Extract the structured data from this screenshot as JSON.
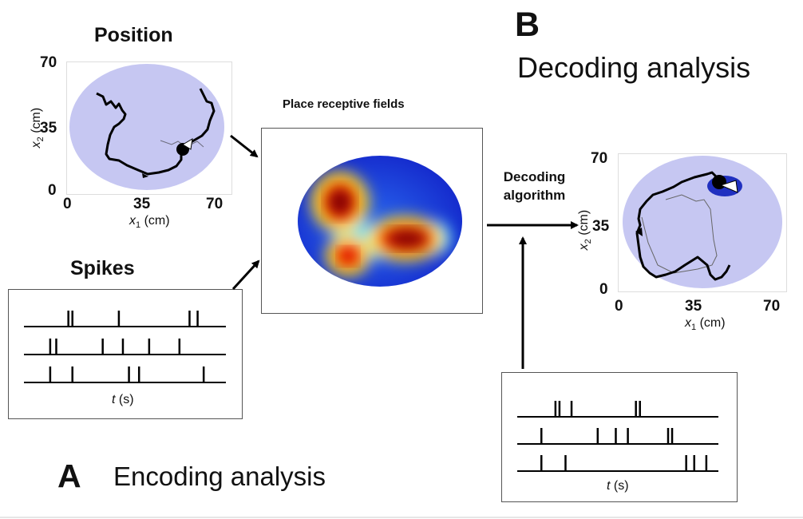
{
  "panel_a": {
    "letter": "A",
    "caption": "Encoding analysis",
    "position_title": "Position",
    "spikes_title": "Spikes",
    "rf_title": "Place receptive fields",
    "position_plot": {
      "x_ticks": [
        "0",
        "35",
        "70"
      ],
      "y_ticks": [
        "0",
        "35",
        "70"
      ],
      "xlabel_var": "x",
      "xlabel_sub": "1",
      "xlabel_unit": " (cm)",
      "ylabel_var": "x",
      "ylabel_sub": "2",
      "ylabel_unit": " (cm)"
    },
    "raster": {
      "xlabel_var": "t",
      "xlabel_unit": " (s)",
      "trains": [
        [
          0.22,
          0.24,
          0.47,
          0.82,
          0.86
        ],
        [
          0.13,
          0.16,
          0.39,
          0.49,
          0.62,
          0.77
        ],
        [
          0.13,
          0.24,
          0.52,
          0.57,
          0.89
        ]
      ]
    }
  },
  "panel_b": {
    "letter": "B",
    "caption": "Decoding analysis",
    "algorithm_line1": "Decoding",
    "algorithm_line2": "algorithm",
    "position_plot": {
      "x_ticks": [
        "0",
        "35",
        "70"
      ],
      "y_ticks": [
        "0",
        "35",
        "70"
      ],
      "xlabel_var": "x",
      "xlabel_sub": "1",
      "xlabel_unit": " (cm)",
      "ylabel_var": "x",
      "ylabel_sub": "2",
      "ylabel_unit": " (cm)"
    },
    "raster": {
      "xlabel_var": "t",
      "xlabel_unit": " (s)",
      "trains": [
        [
          0.19,
          0.21,
          0.27,
          0.59,
          0.61
        ],
        [
          0.12,
          0.4,
          0.49,
          0.55,
          0.75,
          0.77
        ],
        [
          0.12,
          0.24,
          0.84,
          0.88,
          0.94
        ]
      ]
    }
  },
  "colors": {
    "arena_fill": "#c6c7f2",
    "trajectory": "#000000",
    "arrow": "#000000",
    "rf_low": "#1a3ad8",
    "rf_high": "#7a0000"
  }
}
